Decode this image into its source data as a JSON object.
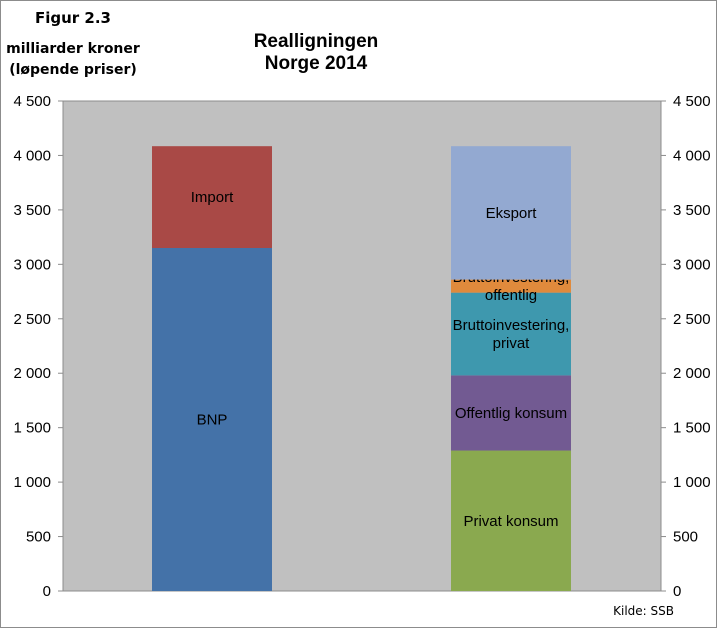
{
  "figure_label": "Figur 2.3",
  "unit_line1": "milliarder kroner",
  "unit_line2": "(løpende priser)",
  "source": "Kilde: SSB",
  "chart_data": {
    "type": "bar",
    "stacked": true,
    "title": [
      "Realligningen",
      "Norge 2014"
    ],
    "ylim": [
      0,
      4500
    ],
    "yticks": [
      0,
      500,
      1000,
      1500,
      2000,
      2500,
      3000,
      3500,
      4000,
      4500
    ],
    "ytick_labels": [
      "0",
      "500",
      "1 000",
      "1 500",
      "2 000",
      "2 500",
      "3 000",
      "3 500",
      "4 000",
      "4 500"
    ],
    "grid": false,
    "legend": "none",
    "bars": [
      {
        "segments": [
          {
            "label": "BNP",
            "value": 3150,
            "color": "#4472a8"
          },
          {
            "label": "Import",
            "value": 935,
            "color": "#a94946"
          }
        ]
      },
      {
        "segments": [
          {
            "label": "Privat konsum",
            "value": 1290,
            "color": "#8aa94f"
          },
          {
            "label": "Offentlig konsum",
            "value": 690,
            "color": "#725a92"
          },
          {
            "label": "Bruttoinvestering, privat",
            "label_lines": [
              "Bruttoinvestering,",
              "privat"
            ],
            "value": 760,
            "color": "#3e98ae"
          },
          {
            "label": "Bruttoinvestering, offentlig",
            "label_lines": [
              "Bruttoinvestering,",
              "offentlig"
            ],
            "value": 120,
            "color": "#e08a3c"
          },
          {
            "label": "Eksport",
            "value": 1225,
            "color": "#93a9d1"
          }
        ]
      }
    ],
    "colors": {
      "plot_background": "#c0c0c0",
      "axis": "#8c8c8c"
    }
  }
}
